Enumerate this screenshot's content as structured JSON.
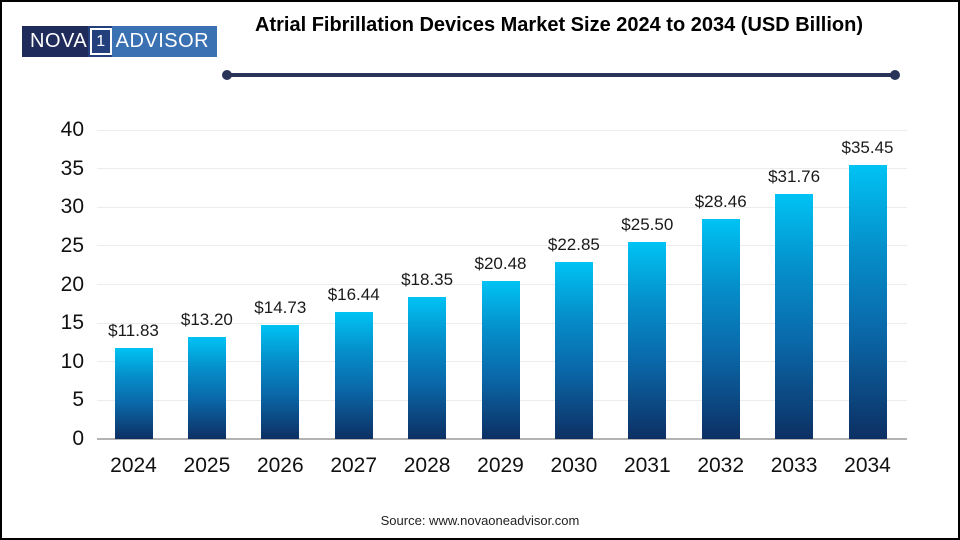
{
  "logo": {
    "nova": "NOVA",
    "one": "1",
    "advisor": "ADVISOR"
  },
  "title": "Atrial Fibrillation Devices Market Size 2024 to 2034 (USD Billion)",
  "source": "Source: www.novaoneadvisor.com",
  "colors": {
    "bar_gradient_top": "#00c3f4",
    "bar_gradient_bottom": "#0d3064",
    "accent_rule": "#2a3358",
    "logo_navy": "#1f2c5b",
    "logo_blue": "#3a71b3",
    "gridline": "#ececec",
    "axis_baseline": "#b3b3b3",
    "text": "#111111"
  },
  "chart_data": {
    "type": "bar",
    "title": "Atrial Fibrillation Devices Market Size 2024 to 2034 (USD Billion)",
    "categories": [
      "2024",
      "2025",
      "2026",
      "2027",
      "2028",
      "2029",
      "2030",
      "2031",
      "2032",
      "2033",
      "2034"
    ],
    "values": [
      11.83,
      13.2,
      14.73,
      16.44,
      18.35,
      20.48,
      22.85,
      25.5,
      28.46,
      31.76,
      35.45
    ],
    "value_labels": [
      "$11.83",
      "$13.20",
      "$14.73",
      "$16.44",
      "$18.35",
      "$20.48",
      "$22.85",
      "$25.50",
      "$28.46",
      "$31.76",
      "$35.45"
    ],
    "xlabel": "",
    "ylabel": "",
    "ylim": [
      0,
      40
    ],
    "yticks": [
      0,
      5,
      10,
      15,
      20,
      25,
      30,
      35,
      40
    ],
    "grid": true,
    "legend": false,
    "currency_unit": "USD Billion"
  }
}
